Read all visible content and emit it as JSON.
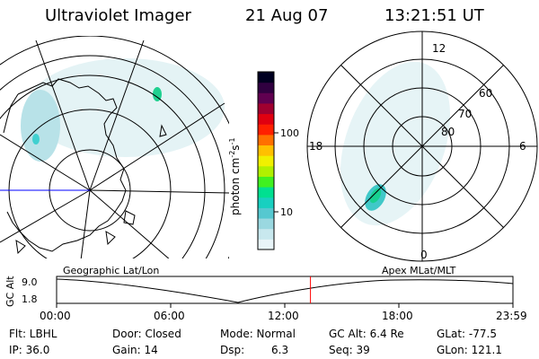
{
  "header": {
    "instrument": "Ultraviolet Imager",
    "date": "21 Aug 07",
    "time": "13:21:51 UT"
  },
  "colorbar": {
    "label": "photon cm",
    "label_sup1": "-2",
    "label_mid": "s",
    "label_sup2": "-1",
    "ticks": [
      "100",
      "10"
    ],
    "scale": "log",
    "colors": [
      "#e8f4f8",
      "#c8e8ee",
      "#9ad8e0",
      "#56c8d0",
      "#18d0c0",
      "#00e090",
      "#40f020",
      "#b0f000",
      "#f0f000",
      "#ffc000",
      "#ff7000",
      "#ff2000",
      "#e00010",
      "#a00030",
      "#600050",
      "#300040",
      "#000020"
    ]
  },
  "polar_plot": {
    "mlt_labels": [
      "12",
      "18",
      "6",
      "0"
    ],
    "lat_labels": [
      "60",
      "70",
      "80"
    ],
    "caption": "Apex MLat/MLT"
  },
  "geo_plot": {
    "caption": "Geographic Lat/Lon"
  },
  "timeline": {
    "ylabel": "GC Alt",
    "y_ticks": [
      "9.0",
      "1.8"
    ],
    "x_ticks": [
      "00:00",
      "06:00",
      "12:00",
      "18:00",
      "23:59"
    ],
    "current_time": "13:21",
    "marker_color": "#ff0000"
  },
  "info": {
    "flt": "Flt: LBHL",
    "ip": "IP: 36.0",
    "door": "Door: Closed",
    "gain": "Gain: 14",
    "mode": "Mode: Normal",
    "dsp_label": "Dsp:",
    "dsp_value": "6.3",
    "gcalt": "GC Alt: 6.4 Re",
    "seq": "Seq: 39",
    "glat": "GLat: -77.5",
    "glon": "GLon: 121.1"
  }
}
